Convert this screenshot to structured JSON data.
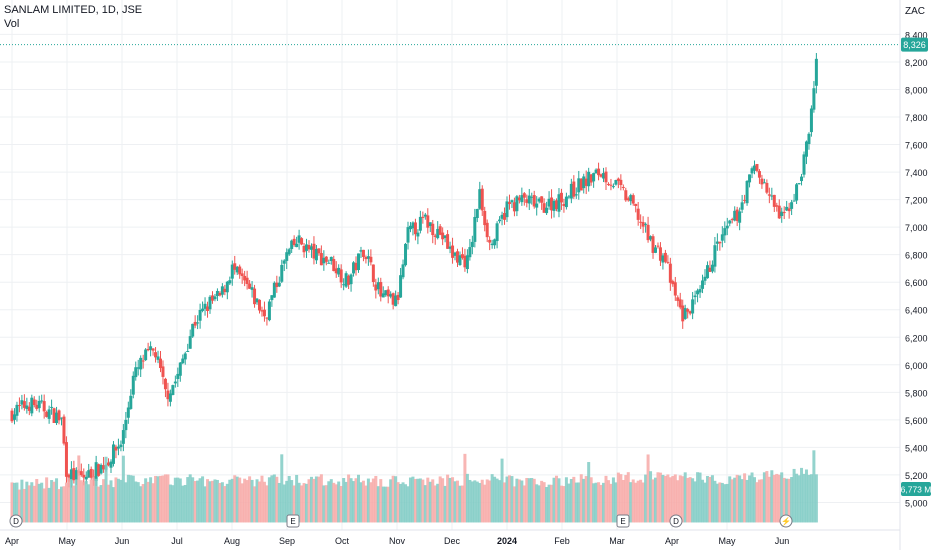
{
  "header": {
    "title": "SANLAM LIMITED, 1D, JSE",
    "subtitle": "Vol",
    "currency": "ZAC"
  },
  "colors": {
    "up": "#26a69a",
    "down": "#ef5350",
    "up_vol": "#80cbc4",
    "down_vol": "#f7a9a7",
    "grid": "#eef0f3",
    "axis_text": "#131722",
    "last_price_line": "#26a69a"
  },
  "chart_data": {
    "type": "candlestick",
    "title": "SANLAM LIMITED, 1D, JSE",
    "ylabel": "ZAC",
    "ylim": [
      4800,
      8650
    ],
    "y_ticks": [
      "8,400",
      "8,200",
      "8,000",
      "7,800",
      "7,600",
      "7,400",
      "7,200",
      "7,000",
      "6,800",
      "6,600",
      "6,400",
      "6,200",
      "6,000",
      "5,800",
      "5,600",
      "5,400",
      "5,200",
      "5,000"
    ],
    "y_tick_values": [
      8400,
      8200,
      8000,
      7800,
      7600,
      7400,
      7200,
      7000,
      6800,
      6600,
      6400,
      6200,
      6000,
      5800,
      5600,
      5400,
      5200,
      5000
    ],
    "x_labels": [
      "Apr",
      "May",
      "Jun",
      "Jul",
      "Aug",
      "Sep",
      "Oct",
      "Nov",
      "Dec",
      "2024",
      "Feb",
      "Mar",
      "Apr",
      "May",
      "Jun"
    ],
    "last_price": 8326,
    "last_price_label": "8,326",
    "last_volume_label": "6,773 M",
    "event_markers": [
      {
        "label": "D",
        "month_index": 0
      },
      {
        "label": "E",
        "month_index": 5
      },
      {
        "label": "E",
        "month_index": 11
      },
      {
        "label": "D",
        "month_index": 12
      },
      {
        "label": "⚡",
        "month_index": 14
      }
    ],
    "price_path": [
      [
        0,
        5650
      ],
      [
        0.3,
        5720
      ],
      [
        0.6,
        5680
      ],
      [
        0.9,
        5600
      ],
      [
        1.0,
        5200
      ],
      [
        1.3,
        5180
      ],
      [
        1.7,
        5280
      ],
      [
        2.0,
        5450
      ],
      [
        2.2,
        5900
      ],
      [
        2.4,
        6050
      ],
      [
        2.6,
        6100
      ],
      [
        2.8,
        5780
      ],
      [
        3.0,
        5900
      ],
      [
        3.3,
        6300
      ],
      [
        3.6,
        6450
      ],
      [
        3.8,
        6500
      ],
      [
        4.0,
        6700
      ],
      [
        4.3,
        6550
      ],
      [
        4.6,
        6350
      ],
      [
        5.0,
        6800
      ],
      [
        5.2,
        6900
      ],
      [
        5.5,
        6800
      ],
      [
        5.8,
        6750
      ],
      [
        6.1,
        6600
      ],
      [
        6.4,
        6850
      ],
      [
        6.7,
        6500
      ],
      [
        7.0,
        6450
      ],
      [
        7.2,
        6950
      ],
      [
        7.5,
        7050
      ],
      [
        7.8,
        6950
      ],
      [
        8.0,
        6800
      ],
      [
        8.3,
        6750
      ],
      [
        8.5,
        7250
      ],
      [
        8.7,
        6850
      ],
      [
        9.0,
        7150
      ],
      [
        9.3,
        7200
      ],
      [
        9.6,
        7150
      ],
      [
        10.0,
        7200
      ],
      [
        10.3,
        7300
      ],
      [
        10.7,
        7400
      ],
      [
        11.0,
        7300
      ],
      [
        11.3,
        7150
      ],
      [
        11.6,
        6900
      ],
      [
        11.9,
        6750
      ],
      [
        12.0,
        6550
      ],
      [
        12.2,
        6350
      ],
      [
        12.5,
        6500
      ],
      [
        12.8,
        6850
      ],
      [
        13.2,
        7100
      ],
      [
        13.5,
        7450
      ],
      [
        13.8,
        7200
      ],
      [
        14.0,
        7050
      ],
      [
        14.3,
        7300
      ],
      [
        14.5,
        7700
      ],
      [
        14.65,
        8326
      ]
    ],
    "volume_path": [
      [
        0,
        5080
      ],
      [
        1.0,
        5100
      ],
      [
        2.5,
        5120
      ],
      [
        4.0,
        5110
      ],
      [
        5.5,
        5120
      ],
      [
        7.0,
        5110
      ],
      [
        8.5,
        5120
      ],
      [
        10.0,
        5110
      ],
      [
        11.5,
        5140
      ],
      [
        12.0,
        5150
      ],
      [
        13.0,
        5130
      ],
      [
        14.0,
        5150
      ],
      [
        14.65,
        5180
      ]
    ]
  }
}
